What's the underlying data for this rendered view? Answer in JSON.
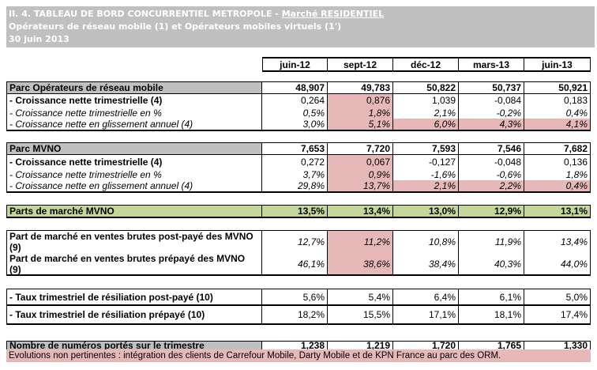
{
  "title": {
    "line1_prefix": "II. 4. TABLEAU DE BORD CONCURRENTIEL METROPOLE - ",
    "line1_link": "Marché RESIDENTIEL",
    "line2": "Opérateurs de réseau mobile (1) et Opérateurs mobiles virtuels (1')",
    "line3": "30 juin 2013"
  },
  "columns": [
    "juin-12",
    "sept-12",
    "déc-12",
    "mars-13",
    "juin-13"
  ],
  "colors": {
    "highlight": "#e6b8b7",
    "green": "#c4d79b",
    "gray": "#c0c0c0"
  },
  "rows": [
    {
      "label": "Parc Opérateurs de réseau mobile",
      "style": "head",
      "values": [
        "48,907",
        "49,783",
        "50,822",
        "50,737",
        "50,921"
      ],
      "highlight": []
    },
    {
      "label": "- Croissance nette trimestrielle (4)",
      "style": "bold",
      "values": [
        "0,264",
        "0,876",
        "1,039",
        "-0,084",
        "0,183"
      ],
      "highlight": [
        1
      ]
    },
    {
      "label": "- Croissance nette trimestrielle en %",
      "style": "italic",
      "values": [
        "0,5%",
        "1,8%",
        "2,1%",
        "-0,2%",
        "0,4%"
      ],
      "highlight": [
        1
      ]
    },
    {
      "label": "- Croissance nette en glissement annuel (4)",
      "style": "italic",
      "values": [
        "3,0%",
        "5,1%",
        "6,0%",
        "4,3%",
        "4,1%"
      ],
      "highlight": [
        1,
        2,
        3,
        4
      ]
    },
    {
      "label": "Parc MVNO",
      "style": "head",
      "values": [
        "7,653",
        "7,720",
        "7,593",
        "7,546",
        "7,682"
      ],
      "highlight": []
    },
    {
      "label": "- Croissance nette trimestrielle (4)",
      "style": "bold",
      "values": [
        "0,272",
        "0,067",
        "-0,127",
        "-0,048",
        "0,136"
      ],
      "highlight": [
        1
      ]
    },
    {
      "label": "- Croissance nette trimestrielle en %",
      "style": "italic",
      "values": [
        "3,7%",
        "0,9%",
        "-1,6%",
        "-0,6%",
        "1,8%"
      ],
      "highlight": [
        1
      ]
    },
    {
      "label": "- Croissance nette en glissement annuel (4)",
      "style": "italic",
      "values": [
        "29,8%",
        "13,7%",
        "2,1%",
        "2,2%",
        "0,4%"
      ],
      "highlight": [
        1,
        2,
        3,
        4
      ]
    },
    {
      "label": "Parts de marché MVNO",
      "style": "green",
      "values": [
        "13,5%",
        "13,4%",
        "13,0%",
        "12,9%",
        "13,1%"
      ],
      "highlight": []
    },
    {
      "label": "Part de marché en ventes brutes post-payé des MVNO (9)",
      "style": "tall",
      "values": [
        "12,7%",
        "11,2%",
        "10,8%",
        "11,9%",
        "13,4%"
      ],
      "highlight": [
        1
      ]
    },
    {
      "label": "Part de marché en ventes brutes prépayé des MVNO (9)",
      "style": "tall",
      "values": [
        "46,1%",
        "38,6%",
        "38,4%",
        "40,3%",
        "44,0%"
      ],
      "highlight": [
        1
      ]
    },
    {
      "label": "- Taux trimestriel de résiliation post-payé (10)",
      "style": "taux",
      "values": [
        "5,6%",
        "5,4%",
        "6,4%",
        "6,1%",
        "5,0%"
      ],
      "highlight": []
    },
    {
      "label": "- Taux trimestriel de résiliation prépayé (10)",
      "style": "taux",
      "values": [
        "18,2%",
        "15,5%",
        "17,1%",
        "18,1%",
        "17,4%"
      ],
      "highlight": []
    },
    {
      "label": "Nombre de numéros portés sur le trimestre",
      "style": "head",
      "values": [
        "1,238",
        "1,219",
        "1,720",
        "1,765",
        "1,330"
      ],
      "highlight": []
    }
  ],
  "footnote": "Evolutions non pertinentes : intégration des clients de Carrefour Mobile, Darty Mobile et de KPN France au parc des ORM."
}
